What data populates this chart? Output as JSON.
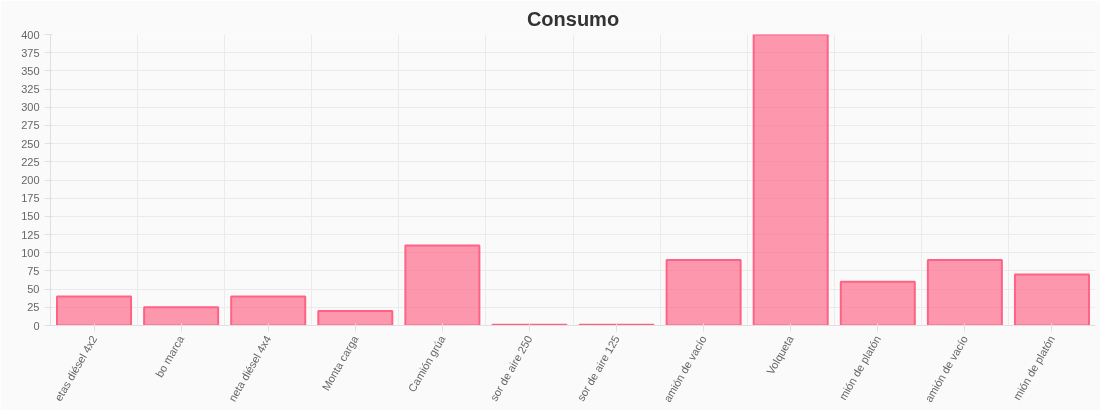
{
  "chart_data": {
    "type": "bar",
    "title": "Consumo",
    "categories": [
      "etas diésel 4x2",
      "bo marca",
      "neta diésel 4x4",
      "Monta carga",
      "Camión grúa",
      "sor de aire 250",
      "sor de aire 125",
      "amión de vacío",
      "Volqueta",
      "mión de platón",
      "amión de vacío",
      "mión de platón"
    ],
    "values": [
      40,
      25,
      40,
      20,
      110,
      1,
      1,
      90,
      400,
      60,
      90,
      70
    ],
    "color": "#ff6384",
    "ylim": [
      0,
      400
    ],
    "yticks": [
      0,
      25,
      50,
      75,
      100,
      125,
      150,
      175,
      200,
      225,
      250,
      275,
      300,
      325,
      350,
      375,
      400
    ],
    "grid": true
  }
}
